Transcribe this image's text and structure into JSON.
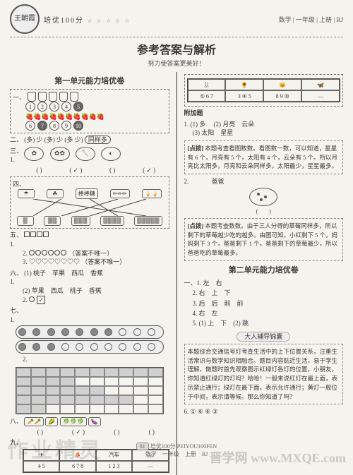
{
  "header": {
    "badge_text": "王朝霞",
    "brand": "培优100分",
    "stars": "☆ ☆ ☆ ☆ ☆",
    "meta": "数学 | 一年级 | 上册 | RJ"
  },
  "title": "参考答案与解析",
  "subtitle": "努力使答案更美好！",
  "unit1_title": "第一单元能力培优卷",
  "q1": {
    "label": "一、",
    "bottle_count": 5,
    "nums_row1": [
      "1",
      "2",
      "3",
      "4",
      "5"
    ],
    "berry_count": 10,
    "nums_row2": [
      "6",
      "7",
      "8",
      "9",
      "10"
    ],
    "filled1": [
      "5"
    ],
    "number7": "7"
  },
  "q2": {
    "label": "二、",
    "items": [
      "多",
      "少",
      "多",
      "少",
      "多",
      "少",
      "同样多"
    ]
  },
  "q3": {
    "label": "三、1.",
    "boxes": [
      "",
      "✓",
      "",
      "✓"
    ]
  },
  "q4": {
    "label": "四、",
    "top": [
      "☂",
      "☘",
      "棒棒糖",
      "✏✏✏",
      "🍦🍦"
    ],
    "bot": [
      "🀫",
      "🀫🀫",
      "🀫🀫🀫",
      "🀫🀫🀫🀫",
      "🀫🀫🀫🀫🀫"
    ]
  },
  "q5": {
    "label": "五、1.",
    "line2_label": "2.",
    "hint2": "（答案不唯一）",
    "line3_label": "3.",
    "heart_count": 8,
    "hint3": "（答案不唯一）"
  },
  "q6": {
    "label": "六、1.",
    "items1": [
      "桃子",
      "苹果",
      "西瓜",
      "香蕉"
    ],
    "label2": "(2)",
    "items2": [
      "苹果",
      "西瓜",
      "桃子",
      "香蕉"
    ],
    "label3": "2.",
    "box": "✓"
  },
  "q7": {
    "label": "七、1.",
    "row1_on": 7,
    "row2_on": 3,
    "label2": "2.",
    "grid_rows": 5,
    "grid_cols": 10,
    "shaded": {
      "0": 10,
      "1": 4,
      "2": 6,
      "3": 8,
      "4": 2
    }
  },
  "q8": {
    "label": "八、",
    "items": [
      "🥕🥕",
      "🌽",
      "🥬🥬🥬",
      "🍆"
    ],
    "check": [
      "",
      "✓",
      "",
      ""
    ]
  },
  "q9": {
    "label": "九、",
    "cells": [
      "✈",
      "⛵",
      "汽车",
      "🚲"
    ],
    "nums": [
      "4 5",
      "6 7 8",
      "1 2 3",
      "—"
    ]
  },
  "right_top": {
    "cells": [
      "🐰",
      "🌻",
      "🐱",
      "🦋"
    ],
    "nums": [
      "⑤ 6 7",
      "3 ④ 5",
      "8 9 ⑩",
      "—"
    ]
  },
  "extra_title": "附加题",
  "extra": {
    "a1_label": "1.",
    "a1_1": "(1) 多",
    "a1_2": "(2) 月亮　云朵",
    "a1_3": "(3) 太阳　星星",
    "note1_label": "[点拨]",
    "note1": "本题考查看图数数。看图数一数，可以知道，星星有 6 个，月亮有 5 个，太阳有 4 个，云朵有 5 个。所以月亮比太阳多，月亮和云朵同样多。太阳最少，星星最多。",
    "a2_label": "2.",
    "a2_name": "爸爸",
    "note2_label": "[点拨]",
    "note2": "本题考查数数。由于三人分得的草莓同样多，所以剩下的草莓越少吃的越多。由图可知，小红剩下 5 个，妈妈剩下 3 个，爸爸剩下 1 个。爸爸剩下的草莓最少，所以爸爸吃的草莓最多。"
  },
  "unit2_title": "第二单元能力培优卷",
  "u2": {
    "l1": "一、1. 左　右",
    "l2": "2. 右　上　下",
    "l3": "3. 后　后　前　前",
    "l4": "4. 右　左",
    "l5": "5. (1) 上　下　(2) 跳"
  },
  "tip_label": "大人辅导锦囊",
  "tip_text": "本题综合交通信号灯考查生活中的上下位置关系，注重生活常识与数学知识相融合。题目内容贴近生活，易于学生理解。做题时首先观察图示红绿灯各灯的位置，小朋友，你知道红绿灯的灯吗？哈哈！一般来说红灯在最上面，表示禁止通行；绿灯在最下面，表示允许通行；黄灯一般位于中间，表示请等候。那么你知道了吗？",
  "u2_6": "6. ① ⑥ ⑥ ③",
  "footer": {
    "page": "81",
    "line": "培优100分 PEIYOU100FEN",
    "meta": "数学　一年级　上册　RJ"
  },
  "wm1": "作业精灵",
  "wm2": "晋学网 www.MXQE.com"
}
